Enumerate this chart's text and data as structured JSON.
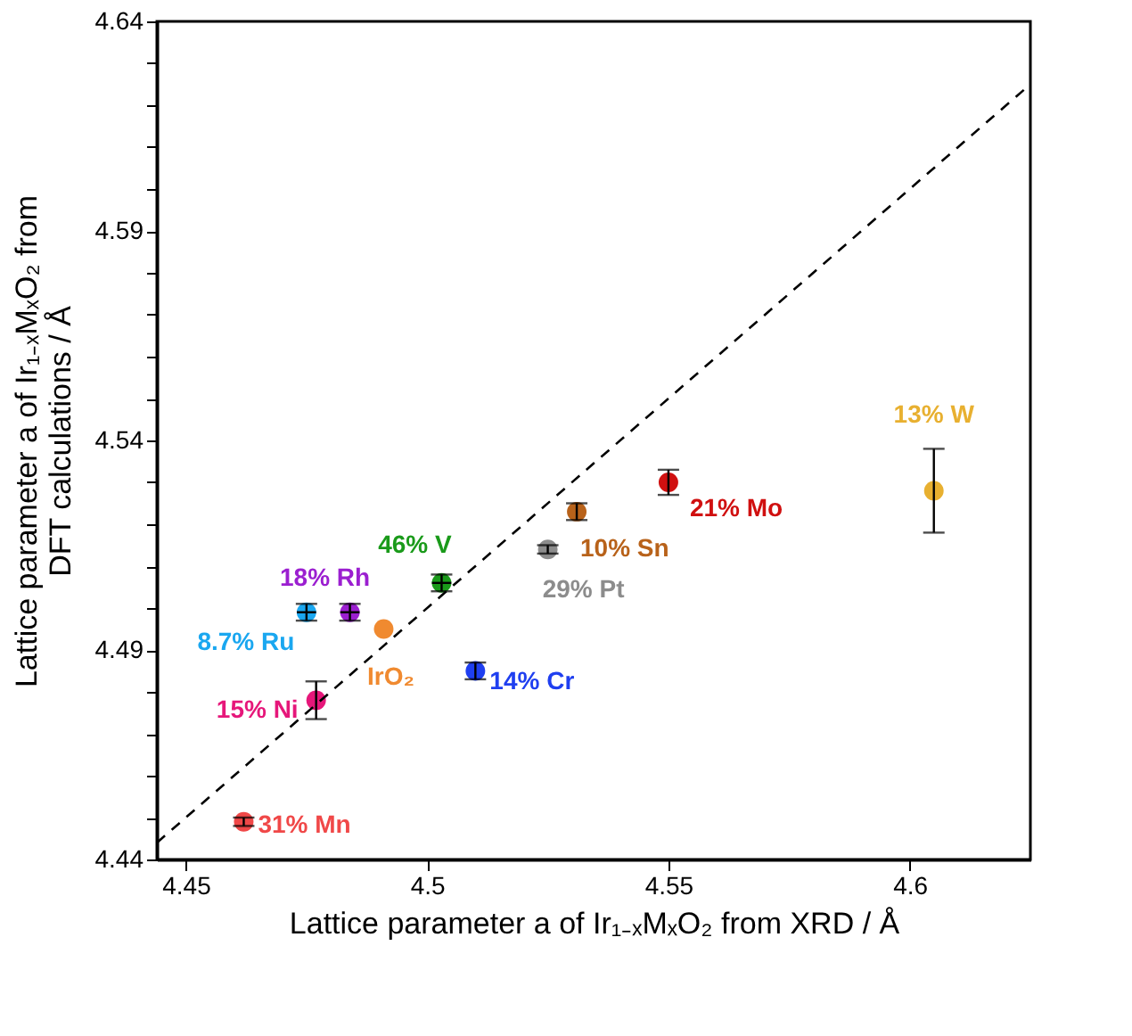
{
  "chart_data": {
    "type": "scatter",
    "xlabel": "Lattice parameter a of Ir₁₋ₓMₓO₂  from XRD /  Å",
    "ylabel": "Lattice parameter a of Ir₁₋ₓMₓO₂ from\nDFT calculations  / Å",
    "xlim": [
      4.444,
      4.625
    ],
    "ylim": [
      4.44,
      4.64
    ],
    "xticks": [
      4.45,
      4.5,
      4.55,
      4.6
    ],
    "yticks": [
      4.44,
      {
        "value": 4.45,
        "label": null
      },
      {
        "value": 4.46,
        "label": null
      },
      {
        "value": 4.47,
        "label": null
      },
      {
        "value": 4.48,
        "label": null
      },
      4.49,
      {
        "value": 4.5,
        "label": null
      },
      {
        "value": 4.51,
        "label": null
      },
      {
        "value": 4.52,
        "label": null
      },
      {
        "value": 4.53,
        "label": null
      },
      4.54,
      {
        "value": 4.55,
        "label": null
      },
      {
        "value": 4.56,
        "label": null
      },
      {
        "value": 4.57,
        "label": null
      },
      {
        "value": 4.58,
        "label": null
      },
      4.59,
      {
        "value": 4.6,
        "label": null
      },
      {
        "value": 4.61,
        "label": null
      },
      {
        "value": 4.62,
        "label": null
      },
      {
        "value": 4.63,
        "label": null
      },
      4.64
    ],
    "grid": false,
    "marker": "circle",
    "series": [
      {
        "name": "31% Mn",
        "color": "#f04848",
        "x": [
          4.462
        ],
        "values": [
          4.449
        ],
        "errors": [
          0.001
        ]
      },
      {
        "name": "15% Ni",
        "color": "#e6177a",
        "x": [
          4.477
        ],
        "values": [
          4.478
        ],
        "errors": [
          0.0045
        ]
      },
      {
        "name": "8.7% Ru",
        "color": "#1aa7f0",
        "x": [
          4.475
        ],
        "values": [
          4.499
        ],
        "errors": [
          0.002
        ],
        "xerrors": [
          0.002
        ]
      },
      {
        "name": "18% Rh",
        "color": "#9b1fd0",
        "x": [
          4.484
        ],
        "values": [
          4.499
        ],
        "errors": [
          0.002
        ],
        "xerrors": [
          0.002
        ]
      },
      {
        "name": "IrO₂",
        "color": "#f08a30",
        "x": [
          4.491
        ],
        "values": [
          4.495
        ]
      },
      {
        "name": "46% V",
        "color": "#1a9a1a",
        "x": [
          4.503
        ],
        "values": [
          4.506
        ],
        "errors": [
          0.002
        ],
        "xerrors": [
          0.002
        ]
      },
      {
        "name": "14% Cr",
        "color": "#1f3ff0",
        "x": [
          4.51
        ],
        "values": [
          4.485
        ],
        "errors": [
          0.002
        ]
      },
      {
        "name": "29% Pt",
        "color": "#8c8c8c",
        "x": [
          4.525
        ],
        "values": [
          4.514
        ],
        "errors": [
          0.001
        ]
      },
      {
        "name": "10% Sn",
        "color": "#b8621a",
        "x": [
          4.531
        ],
        "values": [
          4.523
        ],
        "errors": [
          0.002
        ]
      },
      {
        "name": "21% Mo",
        "color": "#d01010",
        "x": [
          4.55
        ],
        "values": [
          4.53
        ],
        "errors": [
          0.003
        ]
      },
      {
        "name": "13% W",
        "color": "#e8b030",
        "x": [
          4.605
        ],
        "values": [
          4.528
        ],
        "errors": [
          0.01
        ]
      },
      {
        "type": "line",
        "marker": "none",
        "color": "#000000",
        "line_style": "dashed",
        "x": [
          4.444,
          4.625
        ],
        "values": [
          4.444,
          4.625
        ]
      }
    ]
  }
}
